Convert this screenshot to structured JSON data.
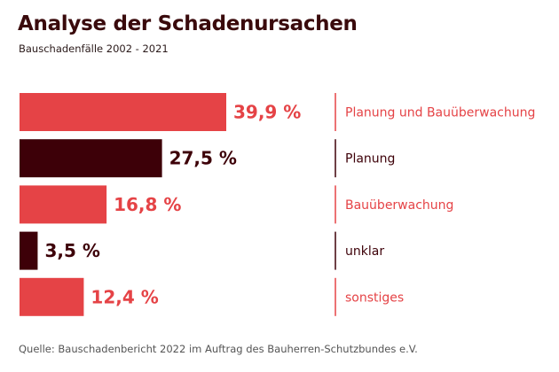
{
  "chart_data": {
    "type": "bar",
    "orientation": "horizontal",
    "title": "Analyse der Schadenursachen",
    "subtitle": "Bauschadenfälle 2002 - 2021",
    "source": "Quelle: Bauschadenbericht 2022 im Auftrag des Bauherren-Schutzbundes e.V.",
    "categories": [
      "Planung und Bauüberwachung",
      "Planung",
      "Bauüberwachung",
      "unklar",
      "sonstiges"
    ],
    "values": [
      39.9,
      27.5,
      16.8,
      3.5,
      12.4
    ],
    "value_labels": [
      "39,9 %",
      "27,5 %",
      "16,8 %",
      "3,5 %",
      "12,4 %"
    ],
    "unit": "%",
    "colors": [
      "#e54346",
      "#3d0008",
      "#e54346",
      "#3d0008",
      "#e54346"
    ],
    "grid": false,
    "legend": "right"
  }
}
